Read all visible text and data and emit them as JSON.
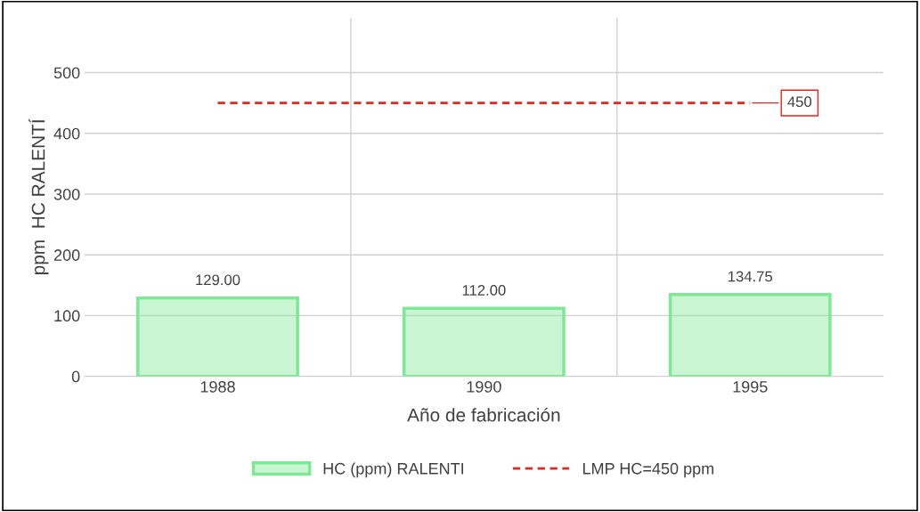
{
  "chart_data": {
    "type": "bar",
    "xlabel": "Año de fabricación",
    "ylabel": "ppm  HC RALENTÍ",
    "categories": [
      "1988",
      "1990",
      "1995"
    ],
    "series": [
      {
        "name": "HC (ppm) RALENTI",
        "color": "#7ee895",
        "values": [
          129.0,
          112.0,
          134.75
        ],
        "value_labels": [
          "129.00",
          "112.00",
          "134.75"
        ]
      },
      {
        "name": "LMP HC=450 ppm",
        "type": "line",
        "color": "#e8251f",
        "line_style": "dashed",
        "marker": "none",
        "values": [
          450,
          450,
          450
        ],
        "value_labels": [
          null,
          null,
          "450"
        ]
      }
    ],
    "ylim": [
      0,
      590
    ],
    "yticks": [
      0,
      100,
      200,
      300,
      400,
      500
    ],
    "grid": true,
    "legend": "bottom"
  }
}
